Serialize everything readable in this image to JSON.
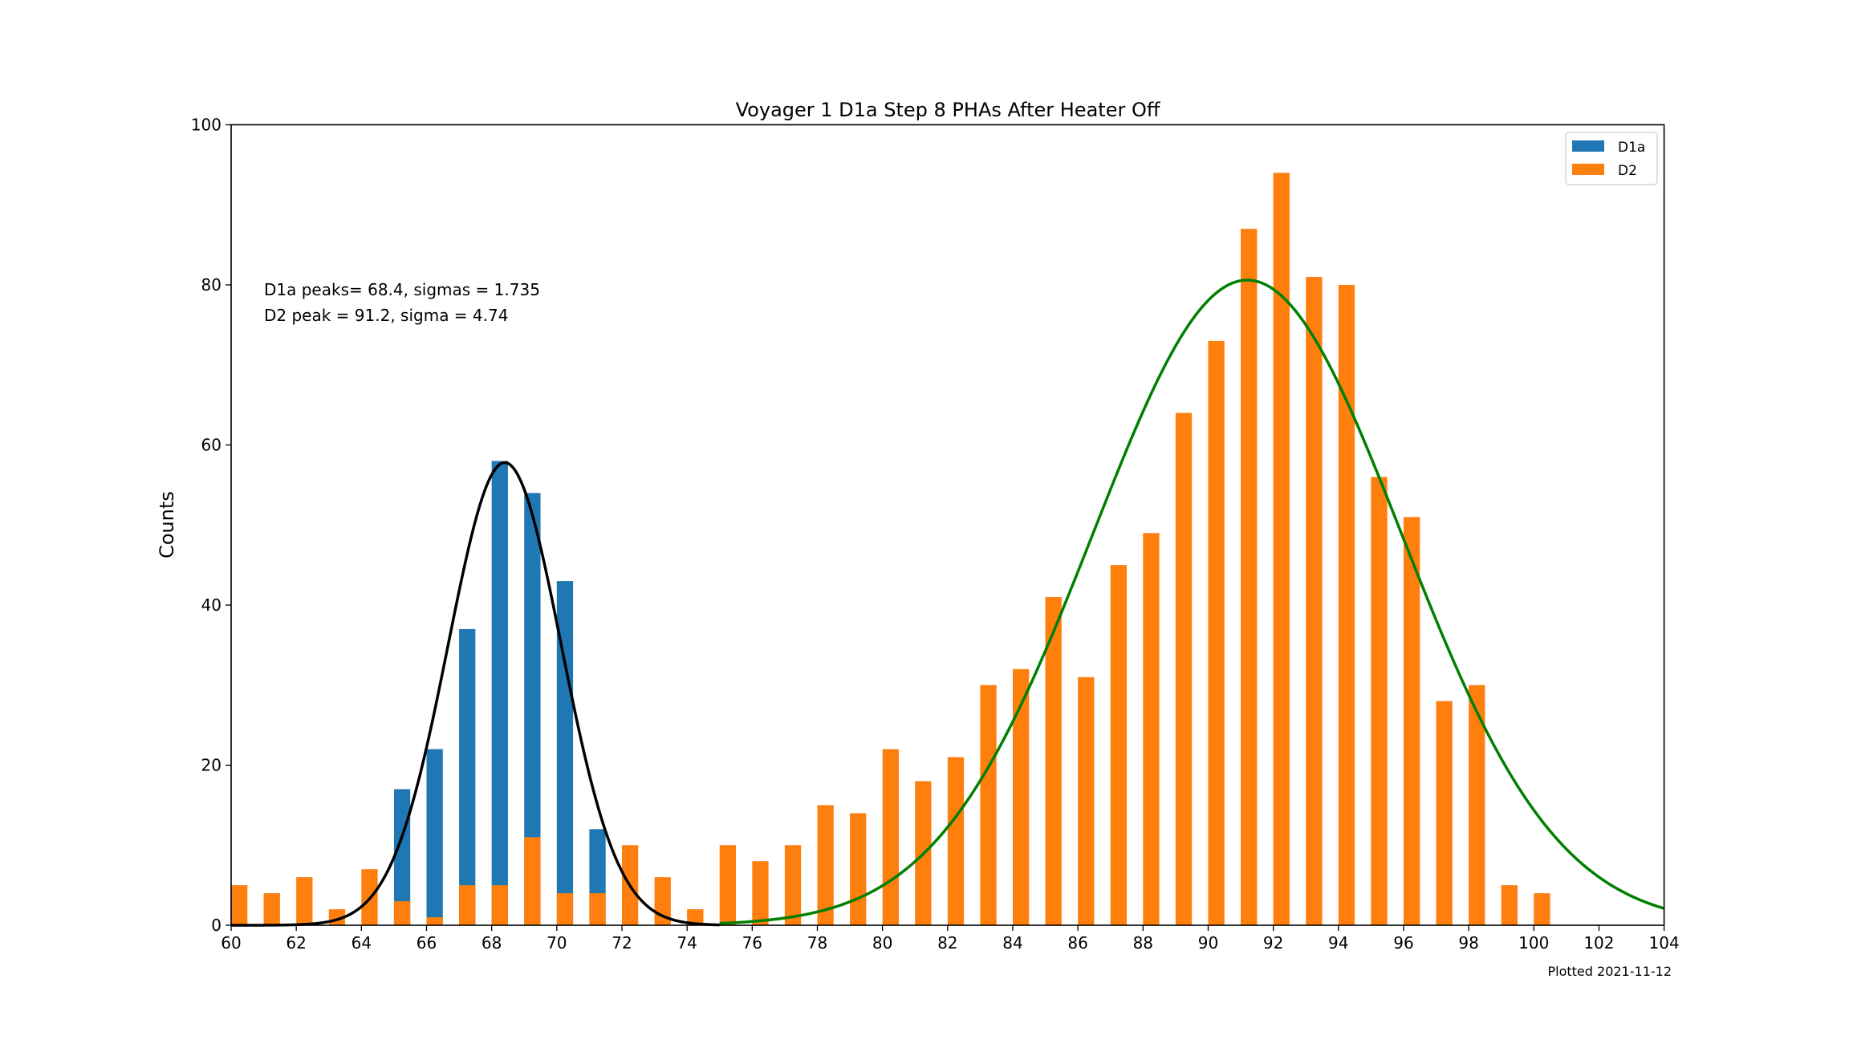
{
  "chart_data": {
    "type": "bar",
    "title": "Voyager 1 D1a Step 8 PHAs After Heater Off",
    "xlabel": "",
    "ylabel": "Counts",
    "xlim": [
      60,
      104
    ],
    "ylim": [
      0,
      100
    ],
    "xticks": [
      60,
      62,
      64,
      66,
      68,
      70,
      72,
      74,
      76,
      78,
      80,
      82,
      84,
      86,
      88,
      90,
      92,
      94,
      96,
      98,
      100,
      102,
      104
    ],
    "yticks": [
      0,
      20,
      40,
      60,
      80,
      100
    ],
    "bar_width": 0.5,
    "legend_placement": "top-right",
    "series": [
      {
        "name": "D1a",
        "color": "#1f77b4",
        "x": [
          65,
          66,
          67,
          68,
          69,
          70,
          71
        ],
        "values": [
          17,
          22,
          37,
          58,
          54,
          43,
          12
        ]
      },
      {
        "name": "D2",
        "color": "#ff7f0e",
        "x": [
          60,
          61,
          62,
          63,
          64,
          65,
          66,
          67,
          68,
          69,
          70,
          71,
          72,
          73,
          74,
          75,
          76,
          77,
          78,
          79,
          80,
          81,
          82,
          83,
          84,
          85,
          86,
          87,
          88,
          89,
          90,
          91,
          92,
          93,
          94,
          95,
          96,
          97,
          98,
          99,
          100
        ],
        "values": [
          5,
          4,
          6,
          2,
          7,
          3,
          1,
          5,
          5,
          11,
          4,
          4,
          10,
          6,
          2,
          10,
          8,
          10,
          15,
          14,
          22,
          18,
          21,
          30,
          32,
          41,
          31,
          45,
          49,
          64,
          73,
          87,
          94,
          81,
          80,
          56,
          51,
          28,
          30,
          5,
          4
        ]
      }
    ],
    "fits": [
      {
        "name": "D1a gaussian fit",
        "color": "#000000",
        "peak": 68.4,
        "sigma": 1.735,
        "amplitude": 57.8,
        "range": [
          60,
          75
        ]
      },
      {
        "name": "D2 gaussian fit",
        "color": "#008000",
        "peak": 91.2,
        "sigma": 4.74,
        "amplitude": 80.6,
        "range": [
          75,
          104
        ]
      }
    ],
    "annotations": {
      "fit_line1": "D1a peaks= 68.4, sigmas = 1.735",
      "fit_line2": "D2 peak = 91.2, sigma = 4.74",
      "plotted": "Plotted 2021-11-12"
    }
  }
}
